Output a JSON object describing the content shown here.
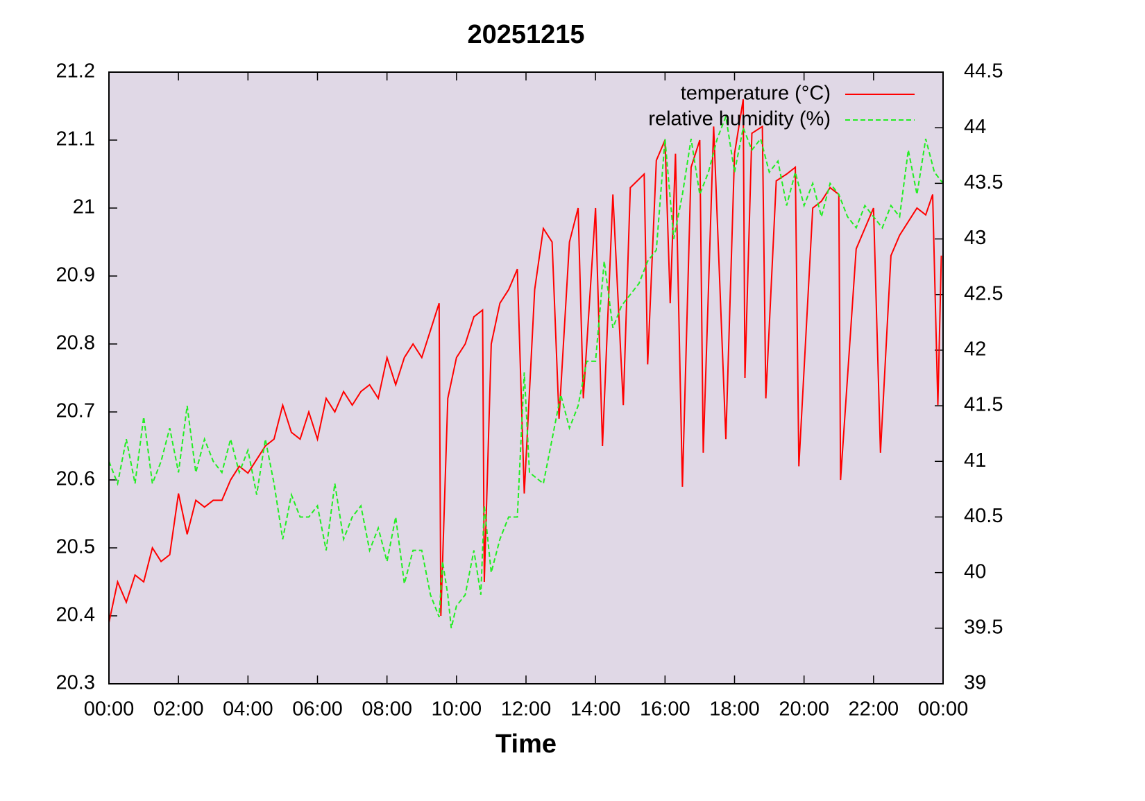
{
  "chart_data": {
    "type": "line",
    "title": "20251215",
    "xlabel": "Time",
    "plot_background": "#e0d8e6",
    "legend": "top right",
    "xlim": [
      0,
      24
    ],
    "xticks": [
      {
        "value": 0,
        "label": "00:00"
      },
      {
        "value": 2,
        "label": "02:00"
      },
      {
        "value": 4,
        "label": "04:00"
      },
      {
        "value": 6,
        "label": "06:00"
      },
      {
        "value": 8,
        "label": "08:00"
      },
      {
        "value": 10,
        "label": "10:00"
      },
      {
        "value": 12,
        "label": "12:00"
      },
      {
        "value": 14,
        "label": "14:00"
      },
      {
        "value": 16,
        "label": "16:00"
      },
      {
        "value": 18,
        "label": "18:00"
      },
      {
        "value": 20,
        "label": "20:00"
      },
      {
        "value": 22,
        "label": "22:00"
      },
      {
        "value": 24,
        "label": "00:00"
      }
    ],
    "ylim": [
      20.3,
      21.2
    ],
    "yticks": [
      20.3,
      20.4,
      20.5,
      20.6,
      20.7,
      20.8,
      20.9,
      21,
      21.1,
      21.2
    ],
    "y2lim": [
      39,
      44.5
    ],
    "y2ticks": [
      39,
      39.5,
      40,
      40.5,
      41,
      41.5,
      42,
      42.5,
      43,
      43.5,
      44,
      44.5
    ],
    "series": [
      {
        "name": "temperature (°C)",
        "color": "#ff0000",
        "dashed": false,
        "x": [
          0,
          0.25,
          0.5,
          0.75,
          1,
          1.25,
          1.5,
          1.75,
          2,
          2.25,
          2.5,
          2.75,
          3,
          3.25,
          3.5,
          3.75,
          4,
          4.25,
          4.5,
          4.75,
          5,
          5.25,
          5.5,
          5.75,
          6,
          6.25,
          6.5,
          6.75,
          7,
          7.25,
          7.5,
          7.75,
          8,
          8.25,
          8.5,
          8.75,
          9,
          9.25,
          9.5,
          9.55,
          9.75,
          10,
          10.25,
          10.5,
          10.75,
          10.8,
          11,
          11.25,
          11.5,
          11.75,
          11.95,
          12.25,
          12.5,
          12.75,
          12.95,
          13.25,
          13.5,
          13.65,
          14,
          14.2,
          14.5,
          14.8,
          15,
          15.4,
          15.5,
          15.75,
          16,
          16.15,
          16.3,
          16.5,
          16.75,
          17,
          17.1,
          17.4,
          17.75,
          18,
          18.25,
          18.3,
          18.5,
          18.8,
          18.9,
          19.2,
          19.5,
          19.75,
          19.85,
          20.25,
          20.5,
          20.75,
          21,
          21.05,
          21.5,
          21.75,
          22,
          22.2,
          22.5,
          22.75,
          23,
          23.25,
          23.5,
          23.7,
          23.85,
          23.95
        ],
        "values": [
          20.39,
          20.45,
          20.42,
          20.46,
          20.45,
          20.5,
          20.48,
          20.49,
          20.58,
          20.52,
          20.57,
          20.56,
          20.57,
          20.57,
          20.6,
          20.62,
          20.61,
          20.63,
          20.65,
          20.66,
          20.71,
          20.67,
          20.66,
          20.7,
          20.66,
          20.72,
          20.7,
          20.73,
          20.71,
          20.73,
          20.74,
          20.72,
          20.78,
          20.74,
          20.78,
          20.8,
          20.78,
          20.82,
          20.86,
          20.4,
          20.72,
          20.78,
          20.8,
          20.84,
          20.85,
          20.45,
          20.8,
          20.86,
          20.88,
          20.91,
          20.58,
          20.88,
          20.97,
          20.95,
          20.69,
          20.95,
          21,
          20.72,
          21,
          20.65,
          21.02,
          20.71,
          21.03,
          21.05,
          20.77,
          21.07,
          21.1,
          20.86,
          21.08,
          20.59,
          21.06,
          21.1,
          20.64,
          21.12,
          20.66,
          21.08,
          21.16,
          20.75,
          21.11,
          21.12,
          20.72,
          21.04,
          21.05,
          21.06,
          20.62,
          21,
          21.01,
          21.03,
          21.02,
          20.6,
          20.94,
          20.97,
          21,
          20.64,
          20.93,
          20.96,
          20.98,
          21,
          20.99,
          21.02,
          20.71,
          20.93
        ]
      },
      {
        "name": "relative humidity (%)",
        "color": "#22ee22",
        "dashed": true,
        "axis": "y2",
        "x": [
          0,
          0.25,
          0.5,
          0.75,
          1,
          1.25,
          1.5,
          1.75,
          2,
          2.25,
          2.5,
          2.75,
          3,
          3.25,
          3.5,
          3.75,
          4,
          4.25,
          4.5,
          4.75,
          5,
          5.25,
          5.5,
          5.75,
          6,
          6.25,
          6.5,
          6.75,
          7,
          7.25,
          7.5,
          7.75,
          8,
          8.25,
          8.5,
          8.75,
          9,
          9.25,
          9.5,
          9.6,
          9.75,
          9.85,
          10,
          10.25,
          10.5,
          10.7,
          10.8,
          11,
          11.25,
          11.5,
          11.75,
          11.95,
          12.1,
          12.5,
          12.75,
          13,
          13.25,
          13.5,
          13.75,
          14,
          14.25,
          14.5,
          14.75,
          15,
          15.25,
          15.5,
          15.75,
          16,
          16.25,
          16.5,
          16.75,
          17,
          17.25,
          17.5,
          17.75,
          18,
          18.25,
          18.5,
          18.75,
          19,
          19.25,
          19.5,
          19.75,
          20,
          20.25,
          20.5,
          20.75,
          21,
          21.25,
          21.5,
          21.75,
          22,
          22.25,
          22.5,
          22.75,
          23,
          23.25,
          23.5,
          23.75,
          24
        ],
        "values": [
          41,
          40.8,
          41.2,
          40.8,
          41.4,
          40.8,
          41,
          41.3,
          40.9,
          41.5,
          40.9,
          41.2,
          41,
          40.9,
          41.2,
          40.9,
          41.1,
          40.7,
          41.2,
          40.8,
          40.3,
          40.7,
          40.5,
          40.5,
          40.6,
          40.2,
          40.8,
          40.3,
          40.5,
          40.6,
          40.2,
          40.4,
          40.1,
          40.5,
          39.9,
          40.2,
          40.2,
          39.8,
          39.6,
          40.1,
          39.8,
          39.5,
          39.7,
          39.8,
          40.2,
          39.8,
          40.6,
          40,
          40.3,
          40.5,
          40.5,
          41.8,
          40.9,
          40.8,
          41.2,
          41.6,
          41.3,
          41.5,
          41.9,
          41.9,
          42.8,
          42.2,
          42.4,
          42.5,
          42.6,
          42.8,
          42.9,
          43.9,
          43,
          43.4,
          43.9,
          43.4,
          43.6,
          43.9,
          44.1,
          43.6,
          44,
          43.8,
          43.9,
          43.6,
          43.7,
          43.3,
          43.6,
          43.3,
          43.5,
          43.2,
          43.5,
          43.4,
          43.2,
          43.1,
          43.3,
          43.2,
          43.1,
          43.3,
          43.2,
          43.8,
          43.4,
          43.9,
          43.6,
          43.5
        ]
      }
    ]
  }
}
